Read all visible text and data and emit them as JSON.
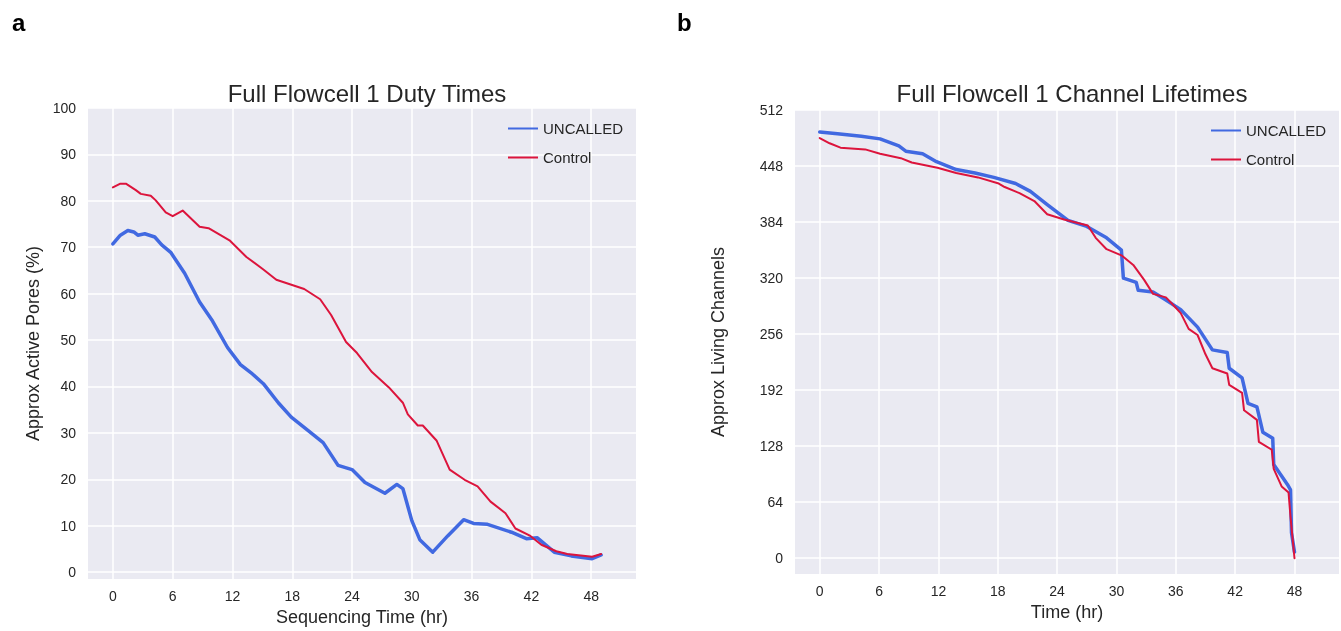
{
  "chart_data": [
    {
      "type": "line",
      "title": "Full Flowcell 1 Duty Times",
      "xlabel": "Sequencing Time (hr)",
      "ylabel": "Approx Active Pores (%)",
      "annotations": [
        "a"
      ],
      "xlim": [
        -2.5,
        52.5
      ],
      "xticks": [
        0,
        6,
        12,
        18,
        24,
        30,
        36,
        42,
        48
      ],
      "ylim": [
        -1.5,
        100
      ],
      "yticks": [
        0,
        10,
        20,
        30,
        40,
        50,
        60,
        70,
        80,
        90,
        100
      ],
      "grid": true,
      "legend": "top right",
      "marker": "none",
      "line_style": "solid",
      "series": [
        {
          "name": "UNCALLED",
          "color": "#4169e1",
          "x": [
            0,
            0.75,
            1.5,
            2.1,
            2.5,
            3.2,
            4.2,
            4.9,
            5.8,
            7.2,
            8.7,
            10.0,
            11.5,
            12.8,
            14.0,
            15.1,
            16.6,
            17.9,
            19.6,
            21.1,
            22.6,
            24.0,
            25.3,
            27.3,
            28.5,
            29.1,
            30.0,
            30.8,
            32.1,
            33.6,
            35.2,
            36.2,
            37.6,
            40.0,
            41.5,
            42.6,
            44.3,
            46.0,
            48.1,
            49.0
          ],
          "values": [
            70.7,
            72.6,
            73.6,
            73.3,
            72.6,
            72.9,
            72.2,
            70.5,
            68.9,
            64.4,
            58.2,
            54.1,
            48.4,
            44.7,
            42.7,
            40.6,
            36.5,
            33.4,
            30.5,
            27.9,
            23.0,
            22.1,
            19.3,
            17.0,
            18.9,
            18.0,
            11.1,
            7.0,
            4.3,
            7.8,
            11.3,
            10.5,
            10.3,
            8.6,
            7.2,
            7.4,
            4.3,
            3.5,
            2.9,
            3.7
          ]
        },
        {
          "name": "Control",
          "color": "#dc143c",
          "x": [
            0,
            0.75,
            1.3,
            2.3,
            2.8,
            3.8,
            4.3,
            5.3,
            6.0,
            7.0,
            8.7,
            9.6,
            10.8,
            11.7,
            13.4,
            15.1,
            16.4,
            19.2,
            20.8,
            21.9,
            23.4,
            24.5,
            26.0,
            27.7,
            29.1,
            29.6,
            30.6,
            31.1,
            32.5,
            33.8,
            35.3,
            36.6,
            37.9,
            39.4,
            40.4,
            41.9,
            43.0,
            44.5,
            45.6,
            48.1,
            49.0
          ],
          "values": [
            82.9,
            83.7,
            83.7,
            82.3,
            81.5,
            81.1,
            80.1,
            77.5,
            76.7,
            77.9,
            74.4,
            74.1,
            72.6,
            71.5,
            67.9,
            65.2,
            63.0,
            61.0,
            58.8,
            55.4,
            49.6,
            47.2,
            43.1,
            39.8,
            36.5,
            34.0,
            31.6,
            31.6,
            28.3,
            22.1,
            19.9,
            18.5,
            15.2,
            12.7,
            9.4,
            7.8,
            5.9,
            4.5,
            3.9,
            3.3,
            3.9
          ]
        }
      ]
    },
    {
      "type": "line",
      "title": "Full Flowcell 1 Channel Lifetimes",
      "xlabel": "Time (hr)",
      "ylabel": "Approx Living Channels",
      "annotations": [
        "b"
      ],
      "xlim": [
        -2.5,
        52.5
      ],
      "xticks": [
        0,
        6,
        12,
        18,
        24,
        30,
        36,
        42,
        48
      ],
      "ylim": [
        -18,
        512
      ],
      "yticks": [
        0,
        64,
        128,
        192,
        256,
        320,
        384,
        448,
        512
      ],
      "grid": true,
      "legend": "top right",
      "marker": "none",
      "line_style": "solid",
      "series": [
        {
          "name": "UNCALLED",
          "color": "#4169e1",
          "x": [
            0,
            1.8,
            4.2,
            6.1,
            8.0,
            8.7,
            10.4,
            11.8,
            13.8,
            15.7,
            17.6,
            19.8,
            21.3,
            23.0,
            25.1,
            27.0,
            29.0,
            30.5,
            30.7,
            32.0,
            32.2,
            33.7,
            35.0,
            36.5,
            38.2,
            39.7,
            41.2,
            41.4,
            42.7,
            43.3,
            44.2,
            44.8,
            45.8,
            45.9,
            47.3,
            47.6,
            47.7,
            48.0
          ],
          "values": [
            487,
            485,
            482,
            479,
            471,
            465,
            462,
            453,
            444,
            440,
            435,
            428,
            419,
            404,
            386,
            379,
            366,
            352,
            320,
            315,
            306,
            304,
            295,
            284,
            264,
            238,
            235,
            217,
            206,
            177,
            173,
            144,
            137,
            107,
            84,
            78,
            29,
            7
          ]
        },
        {
          "name": "Control",
          "color": "#dc143c",
          "x": [
            0,
            1.0,
            2.1,
            4.6,
            6.1,
            8.2,
            9.3,
            11.9,
            13.8,
            16.0,
            18.1,
            18.7,
            20.2,
            21.7,
            23.0,
            24.7,
            27.1,
            27.9,
            29.0,
            30.5,
            31.7,
            32.8,
            33.7,
            35.0,
            35.6,
            36.5,
            37.3,
            38.2,
            39.0,
            39.7,
            41.2,
            41.4,
            42.7,
            42.9,
            44.2,
            44.4,
            45.7,
            45.9,
            46.7,
            47.4,
            47.6,
            48.0
          ],
          "values": [
            480,
            474,
            469,
            467,
            462,
            457,
            452,
            446,
            440,
            435,
            428,
            424,
            417,
            408,
            393,
            387,
            380,
            366,
            353,
            346,
            335,
            318,
            302,
            298,
            291,
            280,
            262,
            255,
            233,
            217,
            211,
            198,
            189,
            169,
            158,
            133,
            124,
            102,
            82,
            75,
            47,
            0
          ]
        }
      ]
    }
  ]
}
